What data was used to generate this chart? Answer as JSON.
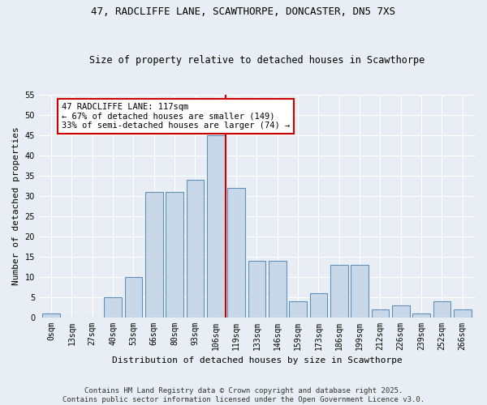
{
  "title1": "47, RADCLIFFE LANE, SCAWTHORPE, DONCASTER, DN5 7XS",
  "title2": "Size of property relative to detached houses in Scawthorpe",
  "xlabel": "Distribution of detached houses by size in Scawthorpe",
  "ylabel": "Number of detached properties",
  "bar_labels": [
    "0sqm",
    "13sqm",
    "27sqm",
    "40sqm",
    "53sqm",
    "66sqm",
    "80sqm",
    "93sqm",
    "106sqm",
    "119sqm",
    "133sqm",
    "146sqm",
    "159sqm",
    "173sqm",
    "186sqm",
    "199sqm",
    "212sqm",
    "226sqm",
    "239sqm",
    "252sqm",
    "266sqm"
  ],
  "bar_values": [
    1,
    0,
    0,
    5,
    10,
    31,
    31,
    34,
    45,
    32,
    14,
    14,
    4,
    6,
    13,
    13,
    2,
    3,
    1,
    4,
    2
  ],
  "bar_color": "#c8d8e8",
  "bar_edgecolor": "#6090b8",
  "background_color": "#e8eef4",
  "vline_color": "#cc0000",
  "annotation_text": "47 RADCLIFFE LANE: 117sqm\n← 67% of detached houses are smaller (149)\n33% of semi-detached houses are larger (74) →",
  "annotation_box_facecolor": "#ffffff",
  "annotation_box_edgecolor": "#cc0000",
  "ylim": [
    0,
    55
  ],
  "yticks": [
    0,
    5,
    10,
    15,
    20,
    25,
    30,
    35,
    40,
    45,
    50,
    55
  ],
  "footer": "Contains HM Land Registry data © Crown copyright and database right 2025.\nContains public sector information licensed under the Open Government Licence v3.0.",
  "grid_color": "#ffffff"
}
